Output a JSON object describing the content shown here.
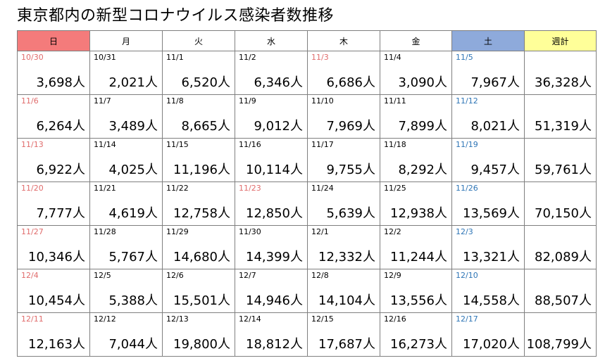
{
  "title": "東京都内の新型コロナウイルス感染者数推移",
  "headers": [
    "日",
    "月",
    "火",
    "水",
    "木",
    "金",
    "土",
    "週計"
  ],
  "header_colors": {
    "sun": "#f47b7b",
    "sat": "#8eaadb",
    "weekly": "#ffff99"
  },
  "date_colors": {
    "sunday_holiday": "#e06c6c",
    "saturday": "#2e75b6"
  },
  "weeks": [
    {
      "days": [
        {
          "date": "10/30",
          "value": "3,698人",
          "kind": "sun"
        },
        {
          "date": "10/31",
          "value": "2,021人",
          "kind": ""
        },
        {
          "date": "11/1",
          "value": "6,520人",
          "kind": ""
        },
        {
          "date": "11/2",
          "value": "6,346人",
          "kind": ""
        },
        {
          "date": "11/3",
          "value": "6,686人",
          "kind": "hol"
        },
        {
          "date": "11/4",
          "value": "3,090人",
          "kind": ""
        },
        {
          "date": "11/5",
          "value": "7,967人",
          "kind": "sat"
        }
      ],
      "total": "36,328人"
    },
    {
      "days": [
        {
          "date": "11/6",
          "value": "6,264人",
          "kind": "sun"
        },
        {
          "date": "11/7",
          "value": "3,489人",
          "kind": ""
        },
        {
          "date": "11/8",
          "value": "8,665人",
          "kind": ""
        },
        {
          "date": "11/9",
          "value": "9,012人",
          "kind": ""
        },
        {
          "date": "11/10",
          "value": "7,969人",
          "kind": ""
        },
        {
          "date": "11/11",
          "value": "7,899人",
          "kind": ""
        },
        {
          "date": "11/12",
          "value": "8,021人",
          "kind": "sat"
        }
      ],
      "total": "51,319人"
    },
    {
      "days": [
        {
          "date": "11/13",
          "value": "6,922人",
          "kind": "sun"
        },
        {
          "date": "11/14",
          "value": "4,025人",
          "kind": ""
        },
        {
          "date": "11/15",
          "value": "11,196人",
          "kind": ""
        },
        {
          "date": "11/16",
          "value": "10,114人",
          "kind": ""
        },
        {
          "date": "11/17",
          "value": "9,755人",
          "kind": ""
        },
        {
          "date": "11/18",
          "value": "8,292人",
          "kind": ""
        },
        {
          "date": "11/19",
          "value": "9,457人",
          "kind": "sat"
        }
      ],
      "total": "59,761人"
    },
    {
      "days": [
        {
          "date": "11/20",
          "value": "7,777人",
          "kind": "sun"
        },
        {
          "date": "11/21",
          "value": "4,619人",
          "kind": ""
        },
        {
          "date": "11/22",
          "value": "12,758人",
          "kind": ""
        },
        {
          "date": "11/23",
          "value": "12,850人",
          "kind": "hol"
        },
        {
          "date": "11/24",
          "value": "5,639人",
          "kind": ""
        },
        {
          "date": "11/25",
          "value": "12,938人",
          "kind": ""
        },
        {
          "date": "11/26",
          "value": "13,569人",
          "kind": "sat"
        }
      ],
      "total": "70,150人"
    },
    {
      "days": [
        {
          "date": "11/27",
          "value": "10,346人",
          "kind": "sun"
        },
        {
          "date": "11/28",
          "value": "5,767人",
          "kind": ""
        },
        {
          "date": "11/29",
          "value": "14,680人",
          "kind": ""
        },
        {
          "date": "11/30",
          "value": "14,399人",
          "kind": ""
        },
        {
          "date": "12/1",
          "value": "12,332人",
          "kind": ""
        },
        {
          "date": "12/2",
          "value": "11,244人",
          "kind": ""
        },
        {
          "date": "12/3",
          "value": "13,321人",
          "kind": "sat"
        }
      ],
      "total": "82,089人"
    },
    {
      "days": [
        {
          "date": "12/4",
          "value": "10,454人",
          "kind": "sun"
        },
        {
          "date": "12/5",
          "value": "5,388人",
          "kind": ""
        },
        {
          "date": "12/6",
          "value": "15,501人",
          "kind": ""
        },
        {
          "date": "12/7",
          "value": "14,946人",
          "kind": ""
        },
        {
          "date": "12/8",
          "value": "14,104人",
          "kind": ""
        },
        {
          "date": "12/9",
          "value": "13,556人",
          "kind": ""
        },
        {
          "date": "12/10",
          "value": "14,558人",
          "kind": "sat"
        }
      ],
      "total": "88,507人"
    },
    {
      "days": [
        {
          "date": "12/11",
          "value": "12,163人",
          "kind": "sun"
        },
        {
          "date": "12/12",
          "value": "7,044人",
          "kind": ""
        },
        {
          "date": "12/13",
          "value": "19,800人",
          "kind": ""
        },
        {
          "date": "12/14",
          "value": "18,812人",
          "kind": ""
        },
        {
          "date": "12/15",
          "value": "17,687人",
          "kind": ""
        },
        {
          "date": "12/16",
          "value": "16,273人",
          "kind": ""
        },
        {
          "date": "12/17",
          "value": "17,020人",
          "kind": "sat"
        }
      ],
      "total": "108,799人"
    }
  ]
}
